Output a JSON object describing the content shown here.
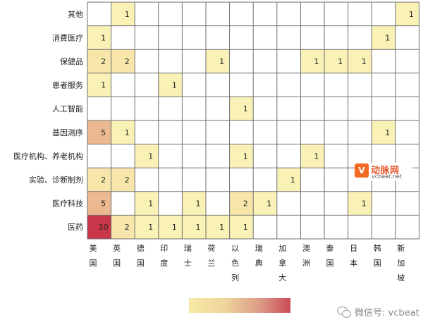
{
  "chart_data": {
    "type": "heatmap",
    "rows": [
      "其他",
      "消费医疗",
      "保健品",
      "患者服务",
      "人工智能",
      "基因测序",
      "医疗机构、养老机构",
      "实验、诊断制剂",
      "医疗科技",
      "医药"
    ],
    "columns": [
      [
        "美",
        "国"
      ],
      [
        "英",
        "国"
      ],
      [
        "德",
        "国"
      ],
      [
        "印",
        "度"
      ],
      [
        "瑞",
        "士"
      ],
      [
        "荷",
        "兰"
      ],
      [
        "以",
        "色",
        "列"
      ],
      [
        "瑞",
        "典"
      ],
      [
        "加",
        "拿",
        "大"
      ],
      [
        "澳",
        "洲"
      ],
      [
        "泰",
        "国"
      ],
      [
        "日",
        "本"
      ],
      [
        "韩",
        "国"
      ],
      [
        "新",
        "加",
        "坡"
      ]
    ],
    "values": [
      [
        null,
        1,
        null,
        null,
        null,
        null,
        null,
        null,
        null,
        null,
        null,
        null,
        null,
        1
      ],
      [
        1,
        null,
        null,
        null,
        null,
        null,
        null,
        null,
        null,
        null,
        null,
        null,
        1,
        null
      ],
      [
        2,
        2,
        null,
        null,
        null,
        1,
        null,
        null,
        null,
        1,
        1,
        1,
        null,
        null
      ],
      [
        1,
        null,
        null,
        1,
        null,
        null,
        null,
        null,
        null,
        null,
        null,
        null,
        null,
        null
      ],
      [
        null,
        null,
        null,
        null,
        null,
        null,
        1,
        null,
        null,
        null,
        null,
        null,
        null,
        null
      ],
      [
        5,
        1,
        null,
        null,
        null,
        null,
        null,
        null,
        null,
        null,
        null,
        null,
        1,
        null
      ],
      [
        null,
        null,
        1,
        null,
        null,
        null,
        1,
        null,
        null,
        1,
        null,
        null,
        null,
        null
      ],
      [
        2,
        2,
        null,
        null,
        null,
        null,
        null,
        null,
        1,
        null,
        null,
        null,
        null,
        null
      ],
      [
        5,
        null,
        1,
        null,
        1,
        null,
        2,
        1,
        null,
        null,
        null,
        1,
        null,
        null
      ],
      [
        10,
        2,
        1,
        1,
        1,
        1,
        1,
        null,
        null,
        null,
        null,
        null,
        null,
        null
      ]
    ],
    "color_scale": [
      "#faf1b6",
      "#f3d79a",
      "#e9b08f",
      "#d87a73",
      "#c9364a"
    ],
    "value_range": [
      1,
      10
    ]
  },
  "logo": {
    "mark": "V",
    "name_cn": "动脉网",
    "name_en": "vcbeat.net"
  },
  "watermark": "微信号: vcbeat"
}
